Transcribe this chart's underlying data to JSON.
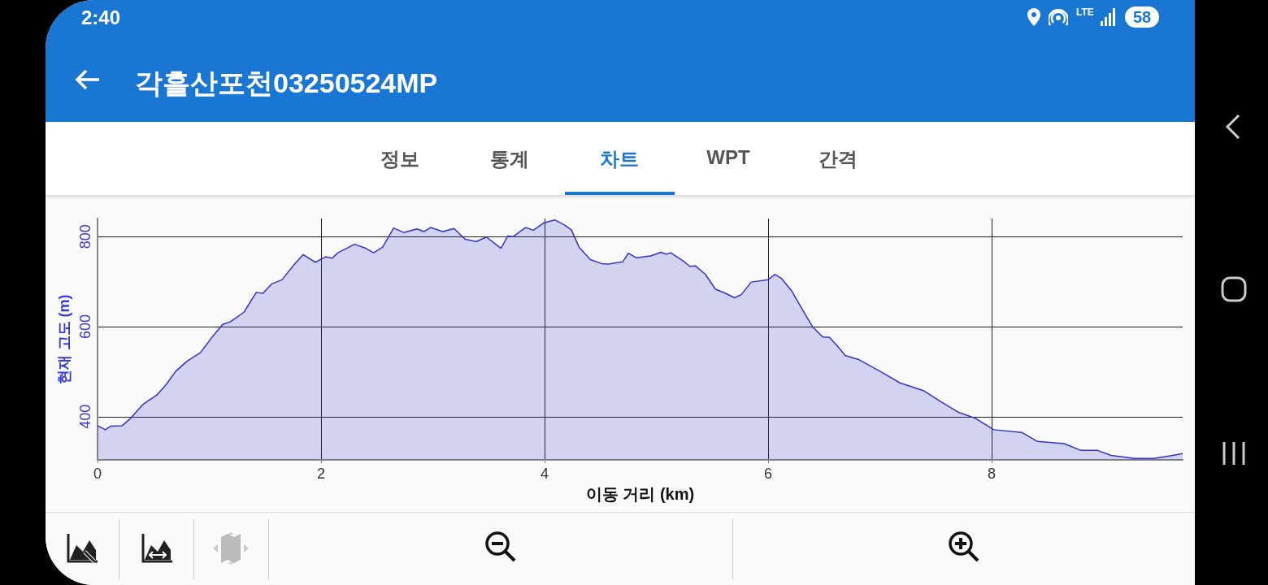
{
  "chart_data": {
    "type": "area",
    "title": "각흘산포천03250524MP",
    "xlabel": "이동 거리 (km)",
    "ylabel": "현재 고도 (m)",
    "annotations": [
      "2:40",
      "LTE",
      "58",
      "정보",
      "통계",
      "차트",
      "WPT",
      "간격"
    ],
    "x": [
      0,
      0.07,
      0.12,
      0.22,
      0.29,
      0.41,
      0.53,
      0.61,
      0.7,
      0.8,
      0.92,
      1.02,
      1.12,
      1.19,
      1.31,
      1.42,
      1.48,
      1.56,
      1.65,
      1.75,
      1.84,
      1.95,
      2.04,
      2.1,
      2.15,
      2.3,
      2.4,
      2.47,
      2.55,
      2.65,
      2.74,
      2.86,
      2.92,
      2.98,
      3.09,
      3.19,
      3.29,
      3.39,
      3.48,
      3.61,
      3.67,
      3.72,
      3.83,
      3.9,
      3.99,
      4.09,
      4.17,
      4.24,
      4.31,
      4.41,
      4.51,
      4.57,
      4.7,
      4.75,
      4.82,
      4.95,
      5.04,
      5.09,
      5.13,
      5.24,
      5.3,
      5.35,
      5.44,
      5.53,
      5.62,
      5.7,
      5.76,
      5.85,
      6.0,
      6.06,
      6.12,
      6.21,
      6.28,
      6.4,
      6.49,
      6.55,
      6.62,
      6.69,
      6.81,
      7.03,
      7.18,
      7.39,
      7.54,
      7.71,
      7.85,
      8.02,
      8.27,
      8.41,
      8.65,
      8.8,
      8.95,
      9.07,
      9.28,
      9.45,
      9.62,
      9.71
    ],
    "series": [
      {
        "color": "#3333cc",
        "values": [
          380,
          371,
          379,
          380,
          395,
          428,
          448,
          470,
          501,
          523,
          542,
          575,
          605,
          611,
          632,
          676,
          674,
          695,
          704,
          735,
          760,
          743,
          755,
          752,
          764,
          783,
          774,
          764,
          776,
          819,
          809,
          817,
          811,
          820,
          811,
          818,
          794,
          789,
          799,
          774,
          801,
          800,
          820,
          814,
          830,
          837,
          827,
          815,
          776,
          749,
          740,
          739,
          744,
          763,
          753,
          757,
          765,
          761,
          764,
          746,
          734,
          735,
          716,
          683,
          674,
          664,
          671,
          699,
          704,
          716,
          707,
          680,
          650,
          599,
          577,
          576,
          557,
          536,
          527,
          497,
          475,
          458,
          434,
          409,
          397,
          371,
          365,
          345,
          340,
          325,
          325,
          314,
          307,
          307,
          314,
          318
        ]
      }
    ],
    "xlim": [
      0,
      9.71
    ],
    "ylim": [
      304,
      840
    ],
    "xticks": [
      0,
      2,
      4,
      6,
      8
    ],
    "yticks": [
      400,
      600,
      800
    ],
    "grid": true
  }
}
